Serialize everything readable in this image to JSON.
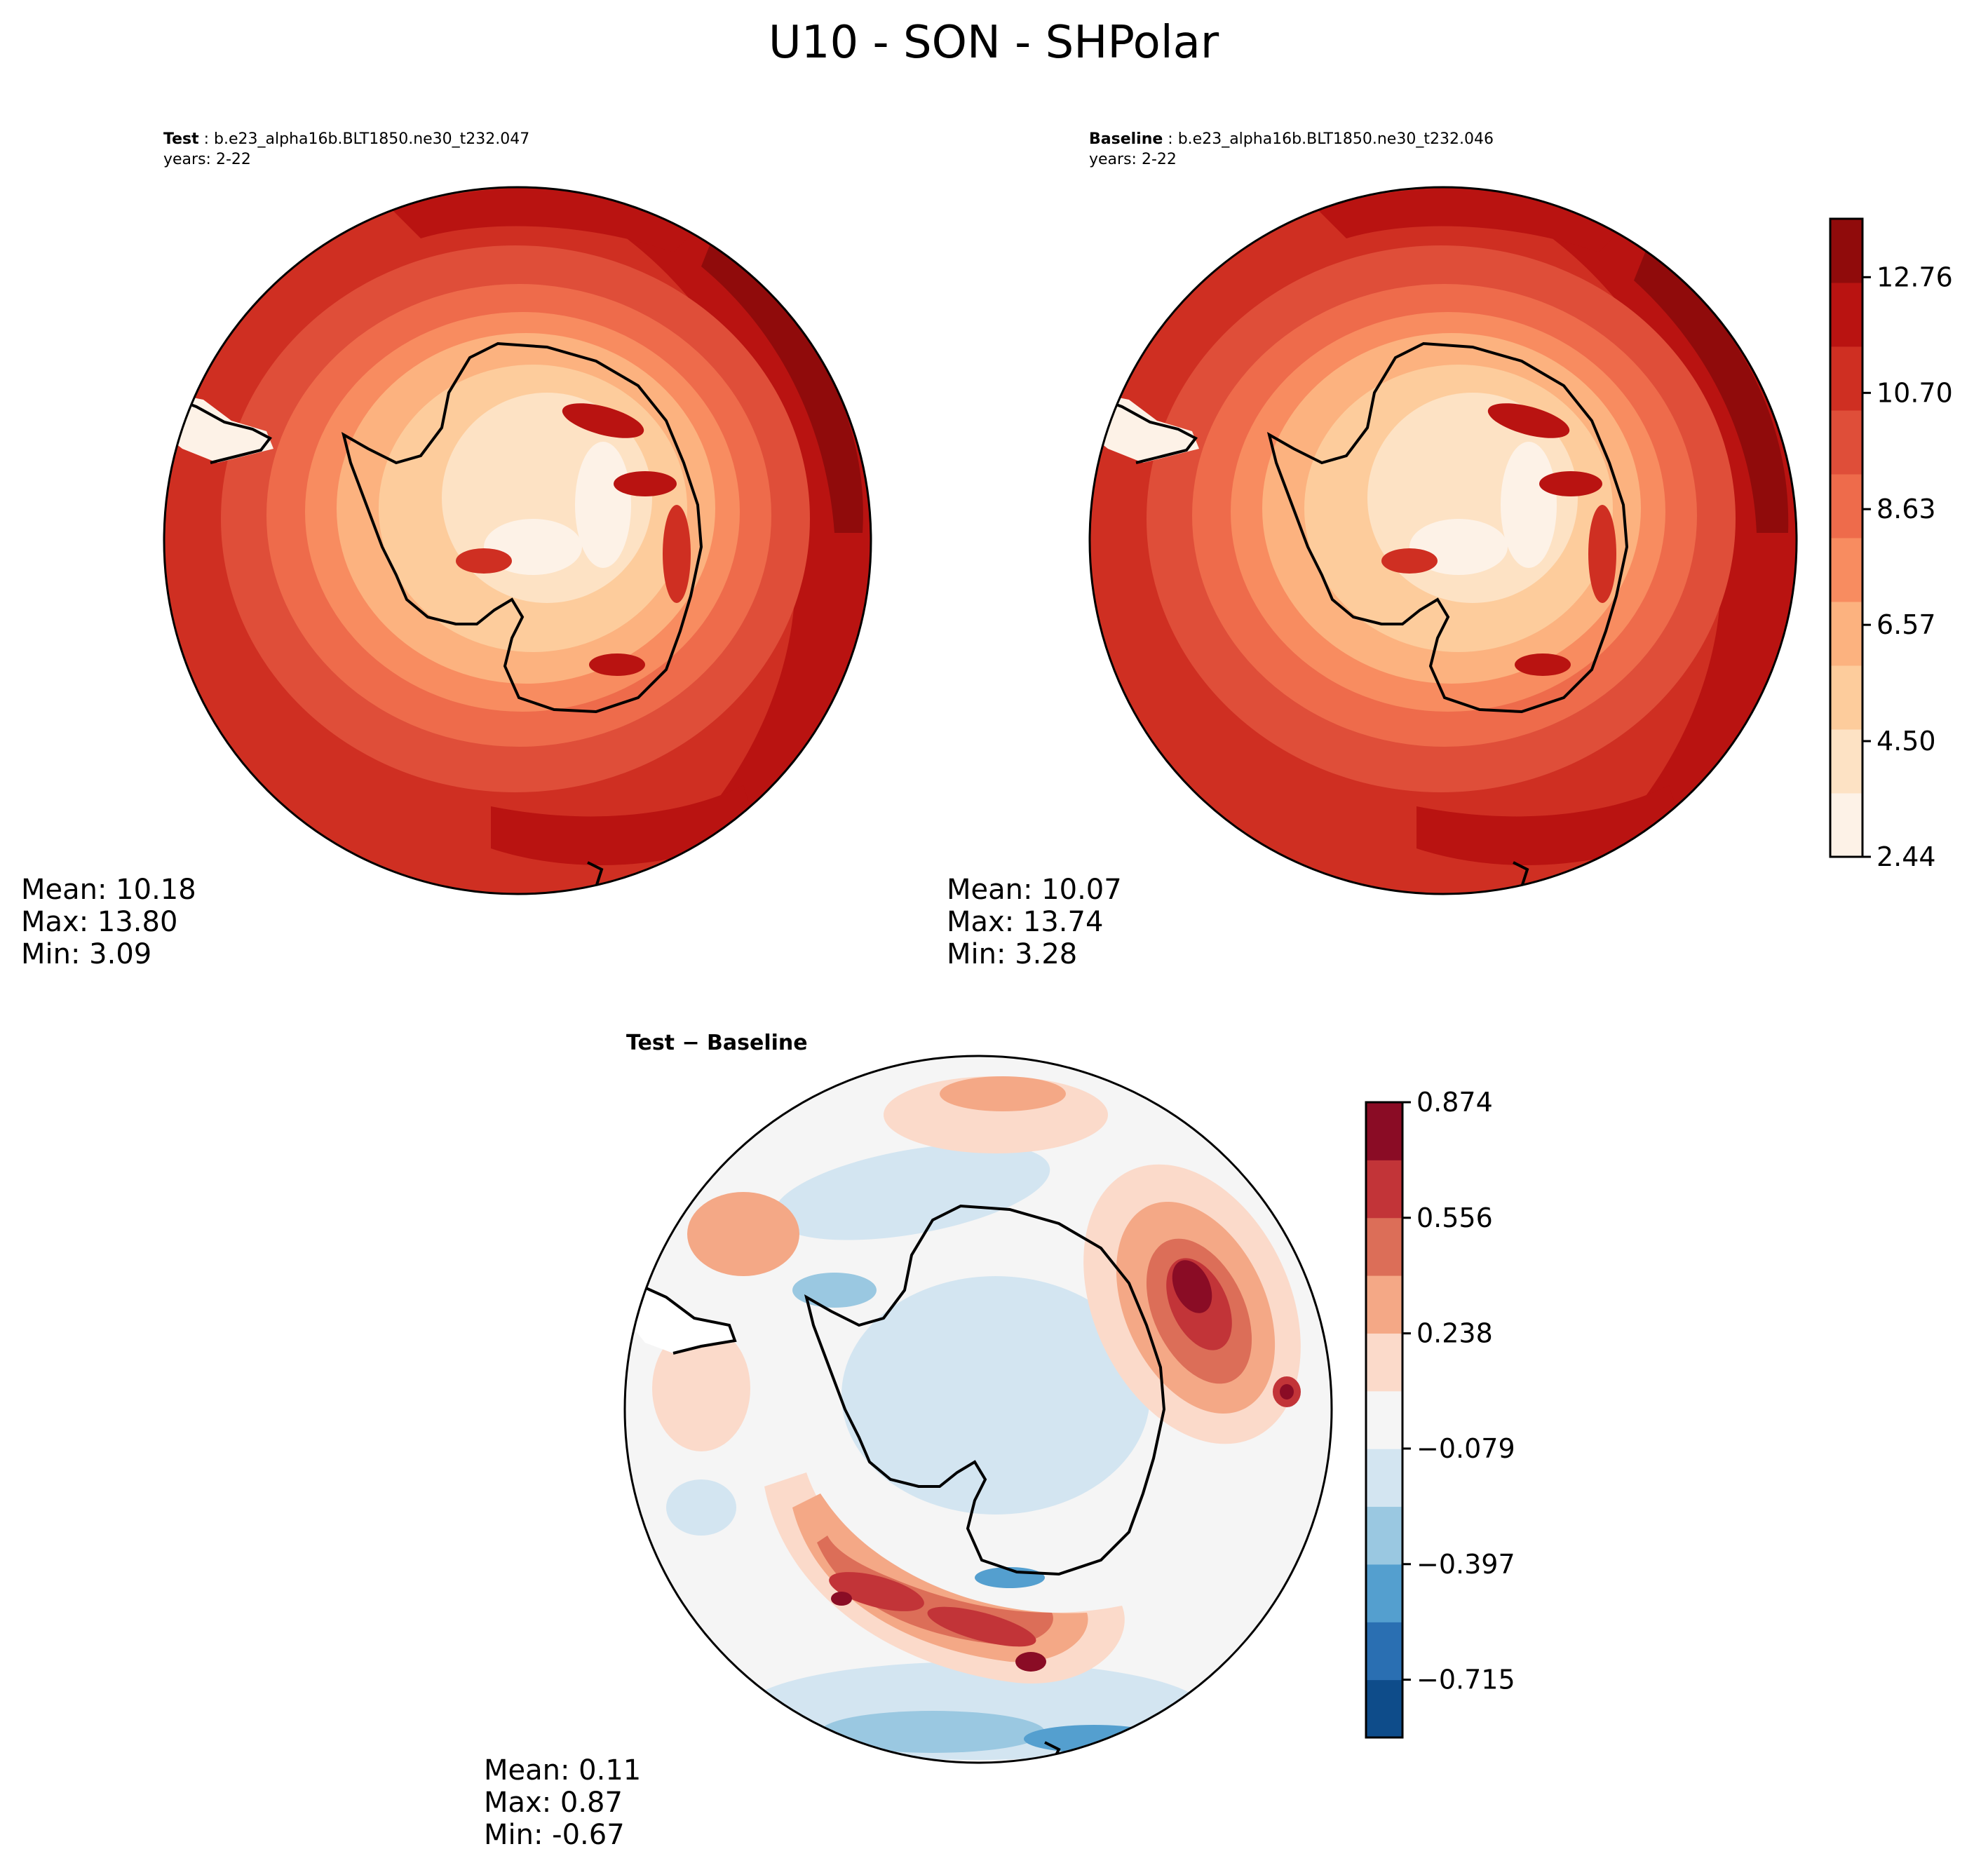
{
  "figure": {
    "title": "U10 - SON - SHPolar"
  },
  "chart_data": [
    {
      "type": "heatmap",
      "panel": "test",
      "label": "Test",
      "case": "b.e23_alpha16b.BLT1850.ne30_t232.047",
      "years": "years: 2-22",
      "projection": "south-polar-stereographic",
      "stats": {
        "mean": "Mean: 10.18",
        "max": "Max: 13.80",
        "min": "Min:  3.09"
      }
    },
    {
      "type": "heatmap",
      "panel": "baseline",
      "label": "Baseline",
      "case": "b.e23_alpha16b.BLT1850.ne30_t232.046",
      "years": "years: 2-22",
      "projection": "south-polar-stereographic",
      "stats": {
        "mean": "Mean: 10.07",
        "max": "Max: 13.74",
        "min": "Min:  3.28"
      },
      "colorbar": {
        "range": [
          2.44,
          13.8
        ],
        "ticks": [
          "2.44",
          "4.50",
          "6.57",
          "8.63",
          "10.70",
          "12.76"
        ],
        "tick_values": [
          2.44,
          4.5,
          6.57,
          8.63,
          10.7,
          12.76
        ],
        "colors": [
          "#fdf2e7",
          "#fde2c4",
          "#fdcc9c",
          "#fcb27f",
          "#f88c60",
          "#ee6b4b",
          "#df4e39",
          "#cf2f22",
          "#b91311",
          "#900b0b"
        ]
      }
    },
    {
      "type": "heatmap",
      "panel": "difference",
      "label": "Test − Baseline",
      "projection": "south-polar-stereographic",
      "stats": {
        "mean": "Mean:  0.11",
        "max": "Max:  0.87",
        "min": "Min: -0.67"
      },
      "colorbar": {
        "range": [
          -0.874,
          0.874
        ],
        "ticks": [
          "−0.715",
          "−0.397",
          "−0.079",
          "0.238",
          "0.556",
          "0.874"
        ],
        "tick_values": [
          -0.715,
          -0.397,
          -0.079,
          0.238,
          0.556,
          0.874
        ],
        "colors": [
          "#0e4c8a",
          "#2a6fb2",
          "#549fcf",
          "#9ac8e1",
          "#d3e5f1",
          "#f5f5f5",
          "#fbdaca",
          "#f4a886",
          "#dc6e58",
          "#c23438",
          "#8a0c25"
        ]
      }
    }
  ]
}
